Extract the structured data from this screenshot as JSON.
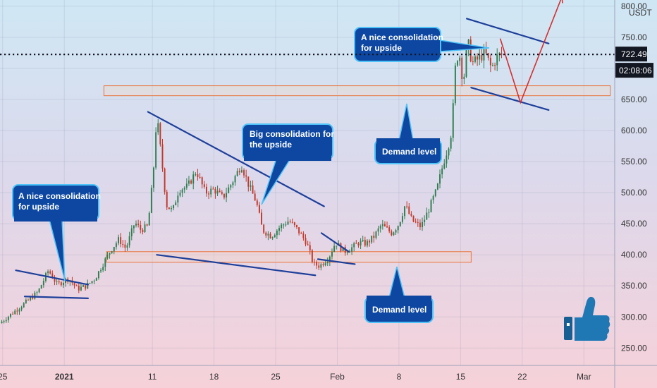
{
  "chart_data": {
    "type": "candlestick",
    "y_unit": "USDT",
    "y_ticks": [
      250,
      300,
      350,
      400,
      450,
      500,
      550,
      600,
      650,
      700,
      750,
      800
    ],
    "y_tick_labels": [
      "250.00",
      "300.00",
      "350.00",
      "400.00",
      "450.00",
      "500.00",
      "550.00",
      "600.00",
      "650.00",
      "700.00",
      "750.00",
      "800.00"
    ],
    "ylim": [
      222,
      810
    ],
    "x_ticks": [
      {
        "label": "25",
        "bold": false,
        "day": -7
      },
      {
        "label": "2021",
        "bold": true,
        "day": 0
      },
      {
        "label": "11",
        "bold": false,
        "day": 10
      },
      {
        "label": "18",
        "bold": false,
        "day": 17
      },
      {
        "label": "25",
        "bold": false,
        "day": 24
      },
      {
        "label": "Feb",
        "bold": false,
        "day": 31
      },
      {
        "label": "8",
        "bold": false,
        "day": 38
      },
      {
        "label": "15",
        "bold": false,
        "day": 45
      },
      {
        "label": "22",
        "bold": false,
        "day": 52
      },
      {
        "label": "Mar",
        "bold": false,
        "day": 59
      }
    ],
    "xlim": [
      -7.3,
      62.5
    ],
    "last_price": {
      "value": 722.49,
      "label": "722.49",
      "countdown": "02:08:06",
      "color": "#131722"
    },
    "price_path": [
      [
        -7.3,
        290
      ],
      [
        -6,
        305
      ],
      [
        -4.5,
        322
      ],
      [
        -3,
        340
      ],
      [
        -1.8,
        375
      ],
      [
        -0.8,
        352
      ],
      [
        0.5,
        362
      ],
      [
        1.5,
        345
      ],
      [
        2.5,
        350
      ],
      [
        3.5,
        362
      ],
      [
        4.5,
        388
      ],
      [
        5.3,
        408
      ],
      [
        6.2,
        425
      ],
      [
        7.0,
        410
      ],
      [
        8.0,
        452
      ],
      [
        8.7,
        440
      ],
      [
        9.5,
        446
      ],
      [
        10.1,
        530
      ],
      [
        10.5,
        625
      ],
      [
        11.0,
        560
      ],
      [
        11.6,
        480
      ],
      [
        12.3,
        470
      ],
      [
        13.0,
        505
      ],
      [
        14.0,
        510
      ],
      [
        15.0,
        535
      ],
      [
        16.0,
        500
      ],
      [
        17.0,
        505
      ],
      [
        18.0,
        492
      ],
      [
        19.0,
        515
      ],
      [
        20.1,
        545
      ],
      [
        21.0,
        510
      ],
      [
        21.8,
        485
      ],
      [
        22.5,
        440
      ],
      [
        23.5,
        430
      ],
      [
        24.5,
        445
      ],
      [
        25.5,
        455
      ],
      [
        26.5,
        440
      ],
      [
        27.5,
        420
      ],
      [
        28.3,
        385
      ],
      [
        29.0,
        382
      ],
      [
        30.0,
        395
      ],
      [
        30.8,
        420
      ],
      [
        31.8,
        405
      ],
      [
        32.5,
        410
      ],
      [
        33.5,
        420
      ],
      [
        34.3,
        418
      ],
      [
        35.2,
        430
      ],
      [
        36.0,
        448
      ],
      [
        37.2,
        435
      ],
      [
        38.0,
        450
      ],
      [
        38.7,
        480
      ],
      [
        39.5,
        455
      ],
      [
        40.5,
        445
      ],
      [
        41.3,
        470
      ],
      [
        42.3,
        505
      ],
      [
        43.0,
        545
      ],
      [
        43.6,
        575
      ],
      [
        44.0,
        600
      ],
      [
        44.4,
        700
      ],
      [
        44.8,
        730
      ],
      [
        45.3,
        675
      ],
      [
        45.8,
        745
      ],
      [
        46.3,
        708
      ],
      [
        47.0,
        715
      ],
      [
        47.8,
        725
      ],
      [
        48.5,
        700
      ],
      [
        49.2,
        720
      ],
      [
        49.8,
        722.49
      ]
    ],
    "annotations": {
      "callouts": [
        {
          "lines": [
            "A nice consolidation",
            "for upside"
          ]
        },
        {
          "lines": [
            "Big consolidation for",
            "the upside"
          ]
        },
        {
          "lines": [
            "Demand level"
          ]
        },
        {
          "lines": [
            "Demand level"
          ]
        },
        {
          "lines": [
            "A nice consolidation",
            "for upside"
          ]
        }
      ],
      "demand_zones": [
        {
          "from_day": 4.8,
          "to_day": 46.2,
          "low": 388,
          "high": 405
        },
        {
          "from_day": 4.5,
          "to_day": 62.0,
          "low": 656,
          "high": 672
        }
      ],
      "colors": {
        "trendline": "#1e3f9a",
        "callout_fill": "#0d47a1",
        "callout_border": "#4fc3f7",
        "zone_border": "#e8743b",
        "projection": "#d32f2f",
        "bull_candle": "#2f7d4f",
        "bear_candle": "#c0392b",
        "thumbs_up": "#1f78b4"
      }
    }
  }
}
